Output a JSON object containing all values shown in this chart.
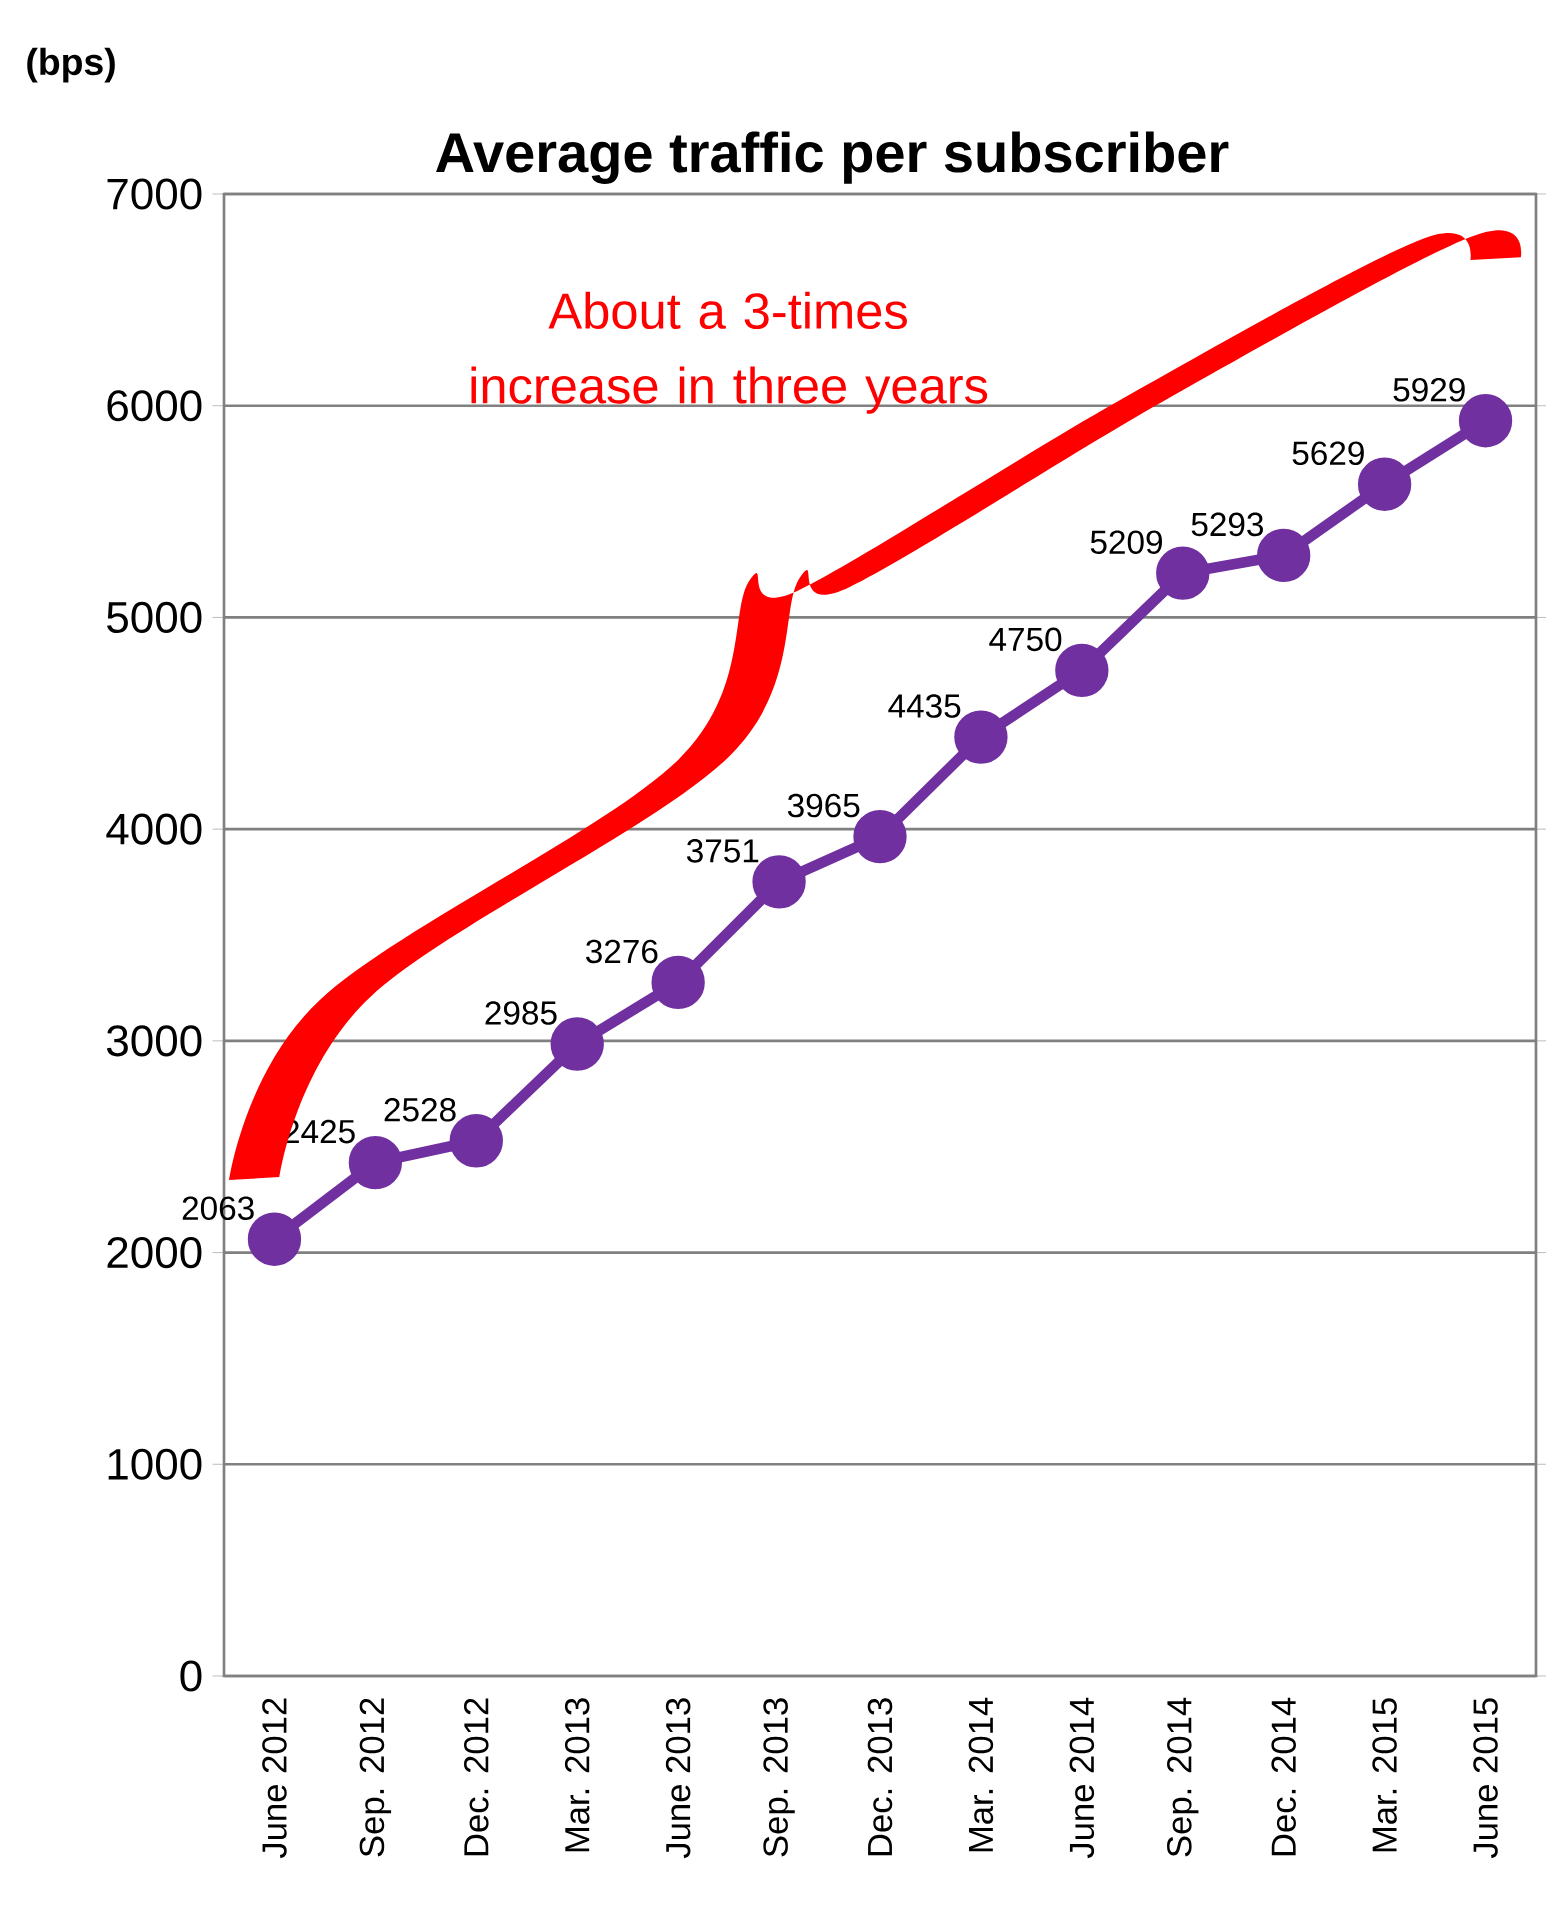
{
  "chart_data": {
    "type": "line",
    "title": "Average traffic per subscriber",
    "ylabel": "(bps)",
    "categories": [
      "June 2012",
      "Sep. 2012",
      "Dec. 2012",
      "Mar. 2013",
      "June 2013",
      "Sep. 2013",
      "Dec. 2013",
      "Mar. 2014",
      "June 2014",
      "Sep. 2014",
      "Dec. 2014",
      "Mar. 2015",
      "June 2015"
    ],
    "series": [
      {
        "color": "#7030a0",
        "values": [
          2063,
          2425,
          2528,
          2985,
          3276,
          3751,
          3965,
          4435,
          4750,
          5209,
          5293,
          5629,
          5929
        ]
      }
    ],
    "ylim": [
      0,
      7000
    ],
    "yticks": [
      0,
      1000,
      2000,
      3000,
      4000,
      5000,
      6000,
      7000
    ],
    "grid": "y",
    "marker": "circle",
    "line_style": "solid",
    "data_labels": true,
    "annotations": [
      "About a 3-times increase in three years"
    ]
  }
}
